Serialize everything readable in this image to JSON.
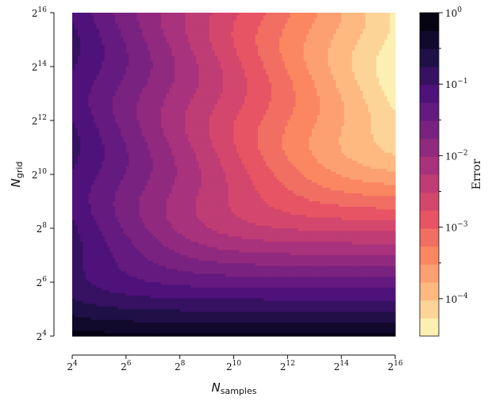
{
  "chart_data": {
    "type": "heatmap",
    "style": "filled-contour",
    "colormap": "magma",
    "x_axis": {
      "label_base": "N",
      "label_sub": "samples",
      "scale": "log2",
      "range": [
        16,
        65536
      ],
      "ticks": [
        {
          "value": 16,
          "base": "2",
          "exp": "4"
        },
        {
          "value": 64,
          "base": "2",
          "exp": "6"
        },
        {
          "value": 256,
          "base": "2",
          "exp": "8"
        },
        {
          "value": 1024,
          "base": "2",
          "exp": "10"
        },
        {
          "value": 4096,
          "base": "2",
          "exp": "12"
        },
        {
          "value": 16384,
          "base": "2",
          "exp": "14"
        },
        {
          "value": 65536,
          "base": "2",
          "exp": "16"
        }
      ]
    },
    "y_axis": {
      "label_base": "N",
      "label_sub": "grid",
      "scale": "log2",
      "range": [
        16,
        65536
      ],
      "ticks": [
        {
          "value": 16,
          "base": "2",
          "exp": "4"
        },
        {
          "value": 64,
          "base": "2",
          "exp": "6"
        },
        {
          "value": 256,
          "base": "2",
          "exp": "8"
        },
        {
          "value": 1024,
          "base": "2",
          "exp": "10"
        },
        {
          "value": 4096,
          "base": "2",
          "exp": "12"
        },
        {
          "value": 16384,
          "base": "2",
          "exp": "14"
        },
        {
          "value": 65536,
          "base": "2",
          "exp": "16"
        }
      ]
    },
    "colorbar": {
      "label": "Error",
      "scale": "log10",
      "range": [
        3e-05,
        1
      ],
      "ticks": [
        {
          "value": 1,
          "base": "10",
          "exp": "0"
        },
        {
          "value": 0.1,
          "base": "10",
          "exp": "−1"
        },
        {
          "value": 0.01,
          "base": "10",
          "exp": "−2"
        },
        {
          "value": 0.001,
          "base": "10",
          "exp": "−3"
        },
        {
          "value": 0.0001,
          "base": "10",
          "exp": "−4"
        }
      ],
      "levels": 18
    },
    "error_model": {
      "description_free": true,
      "sample_term_log10_at_2pow4": -1.0,
      "sample_term_log10_at_2pow16": -4.4,
      "grid_term_log10_at_2pow4": -0.2,
      "grid_term_log10_at_2pow11": -4.4
    },
    "colors": {
      "band_colors": [
        "#fcfdbf",
        "#fed799",
        "#feb078",
        "#fc8961",
        "#f1605d",
        "#d8456c",
        "#b73779",
        "#942c80",
        "#721f81",
        "#51127c",
        "#2d1160",
        "#0f0a2f",
        "#000004"
      ]
    }
  }
}
